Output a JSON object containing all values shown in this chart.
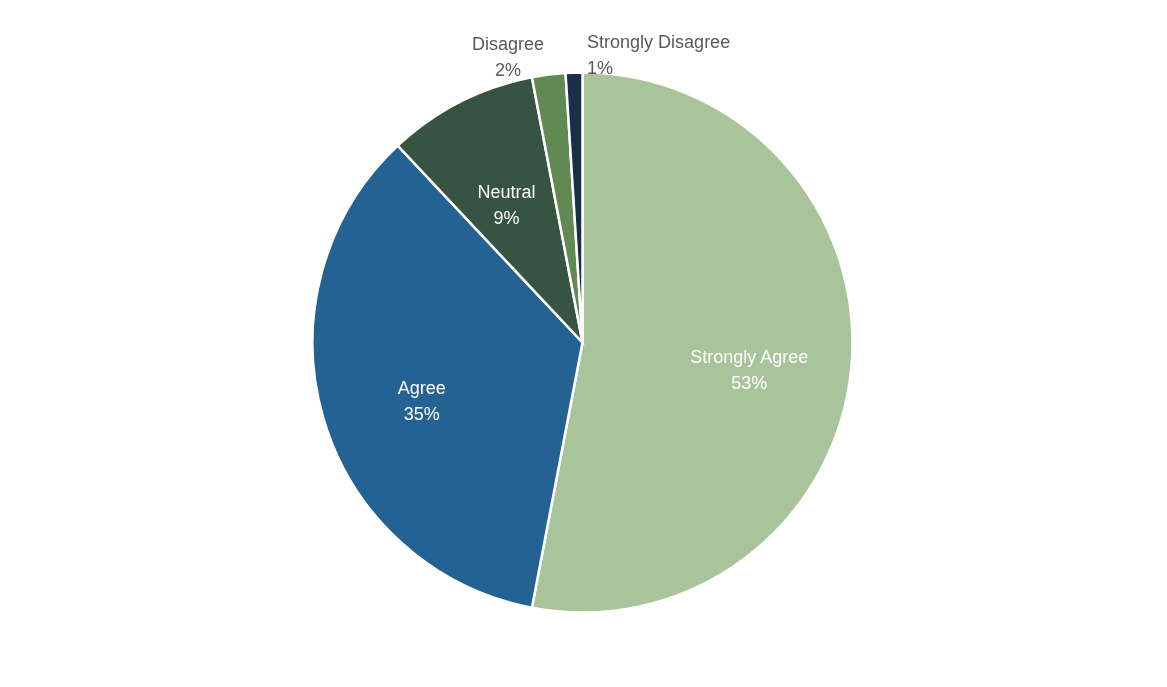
{
  "chart_data": {
    "type": "pie",
    "categories": [
      "Strongly Agree",
      "Agree",
      "Neutral",
      "Disagree",
      "Strongly Disagree"
    ],
    "values": [
      53,
      35,
      9,
      2,
      1
    ],
    "value_labels": [
      "53%",
      "35%",
      "9%",
      "2%",
      "1%"
    ],
    "colors": [
      "#a9c49a",
      "#256294",
      "#375443",
      "#618a52",
      "#1a2e4a"
    ]
  }
}
